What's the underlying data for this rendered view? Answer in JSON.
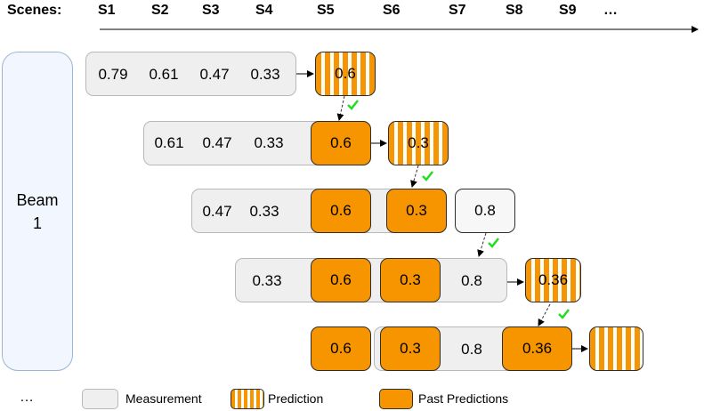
{
  "header": {
    "label": "Scenes:",
    "scenes": [
      "S1",
      "S2",
      "S3",
      "S4",
      "S5",
      "S6",
      "S7",
      "S8",
      "S9",
      "…"
    ]
  },
  "beam": {
    "line1": "Beam",
    "line2": "1"
  },
  "rows": [
    {
      "measurements": [
        "0.79",
        "0.61",
        "0.47",
        "0.33"
      ],
      "past_predictions": [],
      "new_measurement": null,
      "prediction": "0.6"
    },
    {
      "measurements": [
        "0.61",
        "0.47",
        "0.33"
      ],
      "past_predictions": [
        "0.6"
      ],
      "new_measurement": null,
      "prediction": "0.3"
    },
    {
      "measurements": [
        "0.47",
        "0.33"
      ],
      "past_predictions": [
        "0.6",
        "0.3"
      ],
      "new_measurement": "0.8",
      "prediction": null
    },
    {
      "measurements": [
        "0.33"
      ],
      "past_predictions": [
        "0.6",
        "0.3"
      ],
      "mid_measurement": "0.8",
      "prediction": "0.36"
    },
    {
      "measurements": [],
      "past_predictions": [
        "0.6",
        "0.3"
      ],
      "mid_measurement": "0.8",
      "past_prediction_last": "0.36",
      "prediction": ""
    }
  ],
  "footer": {
    "ellipsis": "…"
  },
  "legend": {
    "measurement": "Measurement",
    "prediction": "Prediction",
    "past_predictions": "Past Predictions"
  },
  "colors": {
    "orange": "#f79500",
    "check": "#22dd22",
    "gray": "#efefef"
  }
}
